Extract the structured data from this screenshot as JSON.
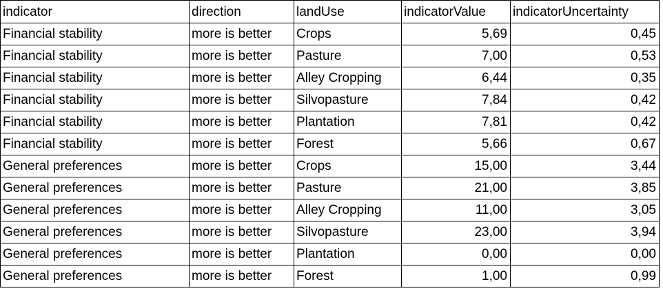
{
  "table": {
    "headers": [
      "indicator",
      "direction",
      "landUse",
      "indicatorValue",
      "indicatorUncertainty"
    ],
    "rows": [
      [
        "Financial stability",
        "more is better",
        "Crops",
        "5,69",
        "0,45"
      ],
      [
        "Financial stability",
        "more is better",
        "Pasture",
        "7,00",
        "0,53"
      ],
      [
        "Financial stability",
        "more is better",
        "Alley Cropping",
        "6,44",
        "0,35"
      ],
      [
        "Financial stability",
        "more is better",
        "Silvopasture",
        "7,84",
        "0,42"
      ],
      [
        "Financial stability",
        "more is better",
        "Plantation",
        "7,81",
        "0,42"
      ],
      [
        "Financial stability",
        "more is better",
        "Forest",
        "5,66",
        "0,67"
      ],
      [
        "General preferences",
        "more is better",
        "Crops",
        "15,00",
        "3,44"
      ],
      [
        "General preferences",
        "more is better",
        "Pasture",
        "21,00",
        "3,85"
      ],
      [
        "General preferences",
        "more is better",
        "Alley Cropping",
        "11,00",
        "3,05"
      ],
      [
        "General preferences",
        "more is better",
        "Silvopasture",
        "23,00",
        "3,94"
      ],
      [
        "General preferences",
        "more is better",
        "Plantation",
        "0,00",
        "0,00"
      ],
      [
        "General preferences",
        "more is better",
        "Forest",
        "1,00",
        "0,99"
      ]
    ]
  }
}
